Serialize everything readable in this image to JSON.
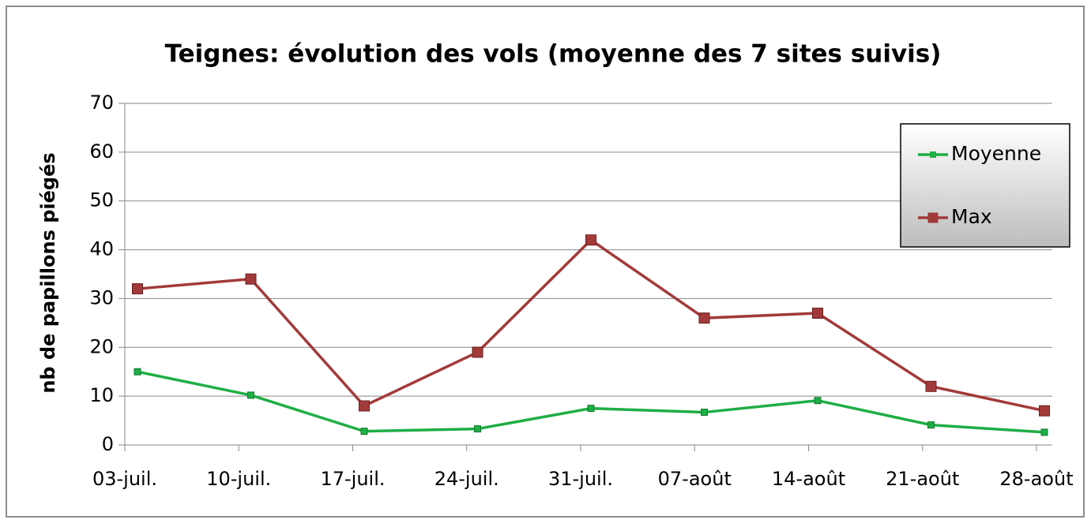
{
  "chart_data": {
    "type": "line",
    "title": "Teignes: évolution des vols (moyenne des 7 sites suivis)",
    "ylabel": "nb  de papillons piégés",
    "categories": [
      "03-juil.",
      "10-juil.",
      "17-juil.",
      "24-juil.",
      "31-juil.",
      "07-août",
      "14-août",
      "21-août",
      "28-août"
    ],
    "series": [
      {
        "name": "Moyenne",
        "color": "#1fae45",
        "values": [
          15,
          10.2,
          2.8,
          3.3,
          7.5,
          6.7,
          9.1,
          4.1,
          2.6
        ]
      },
      {
        "name": "Max",
        "color": "#a33a3a",
        "values": [
          32,
          34,
          8,
          19,
          42,
          26,
          27,
          12,
          7
        ]
      }
    ],
    "ylim": [
      0,
      70
    ],
    "yticks": [
      0,
      10,
      20,
      30,
      40,
      50,
      60,
      70
    ],
    "grid": true,
    "legend": "upper right"
  }
}
